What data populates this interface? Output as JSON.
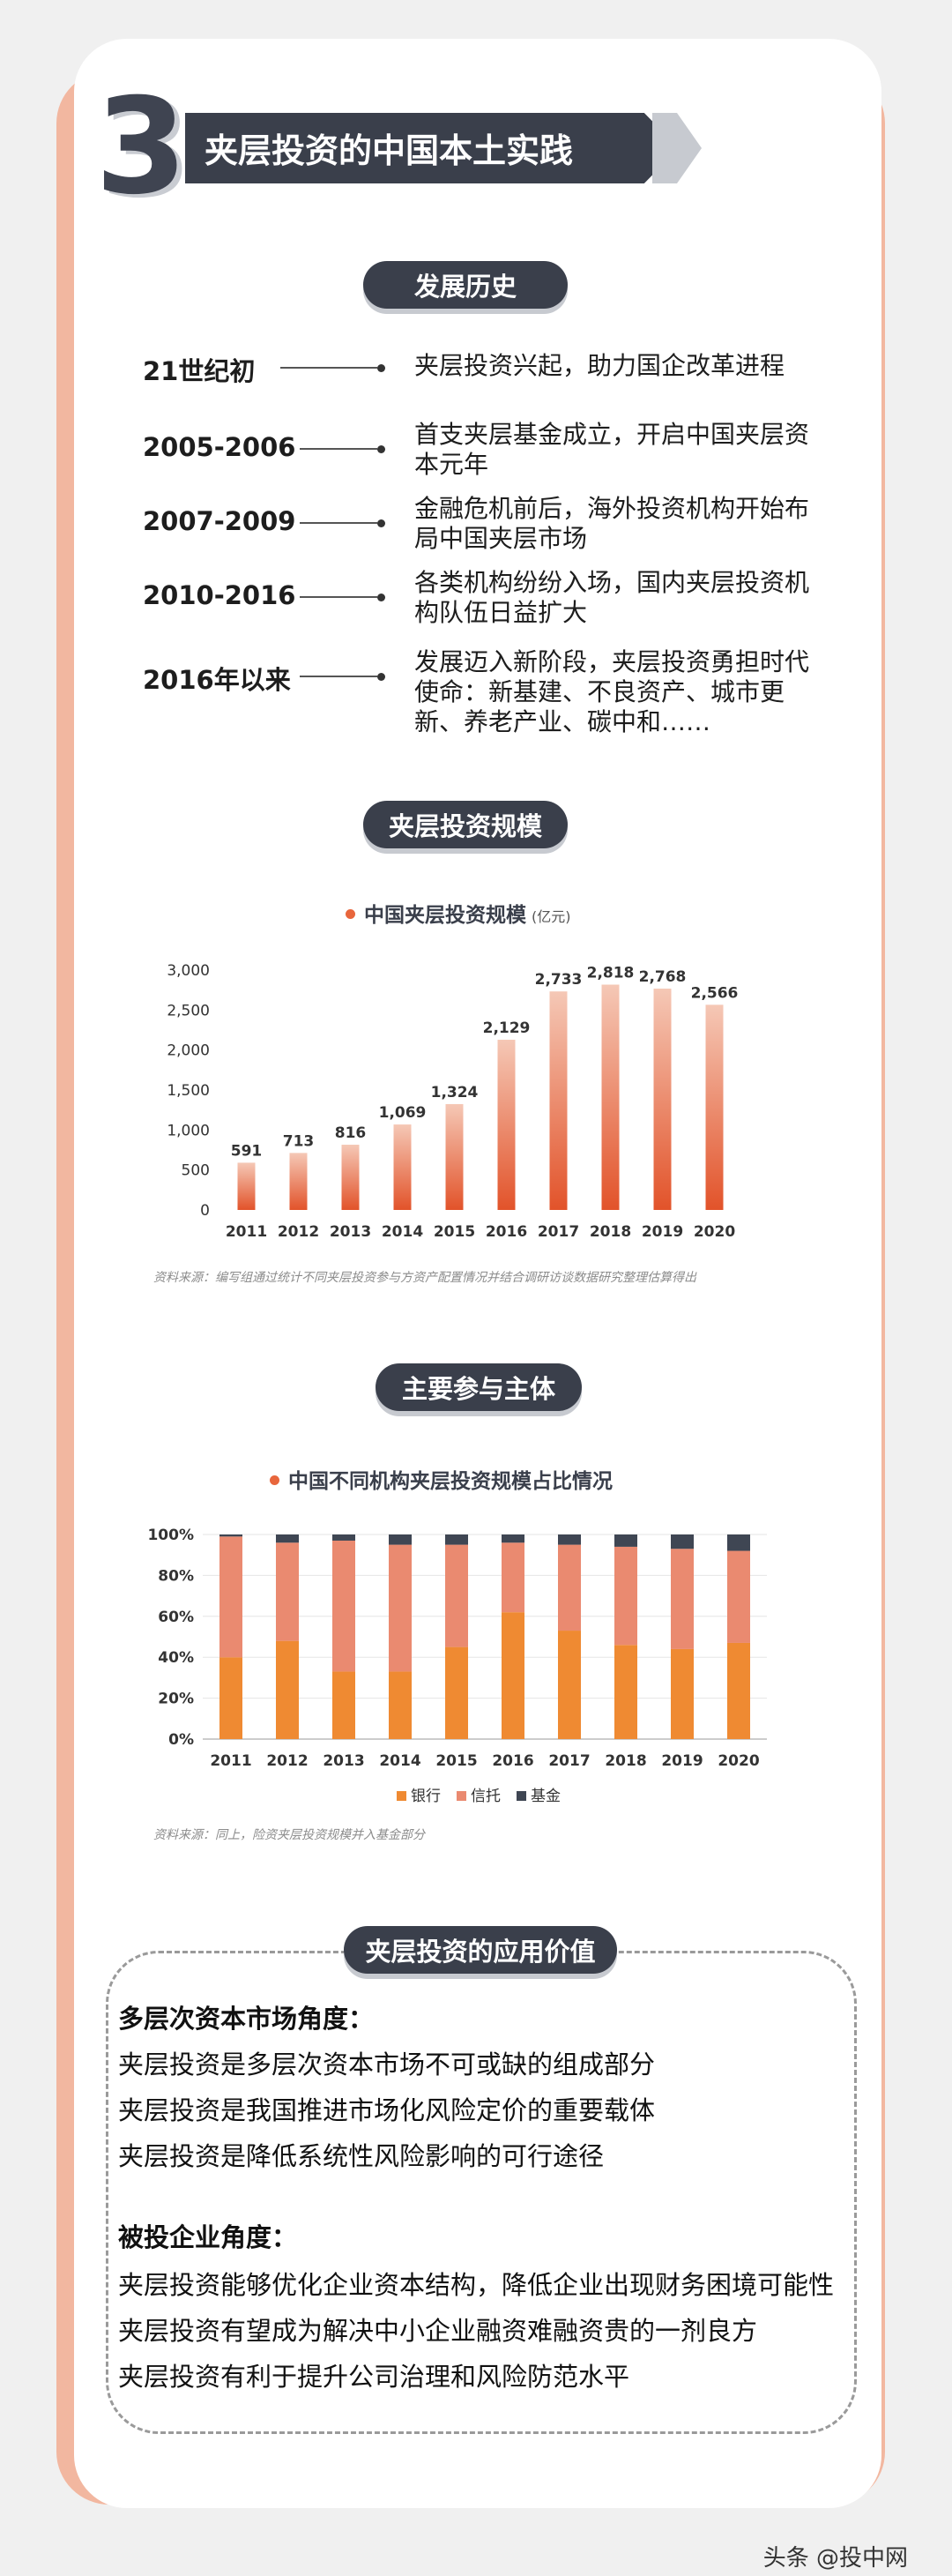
{
  "header": {
    "number": "3",
    "title": "夹层投资的中国本土实践"
  },
  "sections": {
    "history": "发展历史",
    "scale": "夹层投资规模",
    "participants": "主要参与主体",
    "value": "夹层投资的应用价值"
  },
  "timeline": [
    {
      "year": "21世纪初",
      "desc": "夹层投资兴起，助力国企改革进程"
    },
    {
      "year": "2005-2006",
      "desc": "首支夹层基金成立，开启中国夹层资本元年"
    },
    {
      "year": "2007-2009",
      "desc": "金融危机前后，海外投资机构开始布局中国夹层市场"
    },
    {
      "year": "2010-2016",
      "desc": "各类机构纷纷入场，国内夹层投资机构队伍日益扩大"
    },
    {
      "year": "2016年以来",
      "desc": "发展迈入新阶段，夹层投资勇担时代使命：新基建、不良资产、城市更新、养老产业、碳中和……"
    }
  ],
  "chart_data": [
    {
      "type": "bar",
      "title": "中国夹层投资规模",
      "unit": "(亿元)",
      "categories": [
        "2011",
        "2012",
        "2013",
        "2014",
        "2015",
        "2016",
        "2017",
        "2018",
        "2019",
        "2020"
      ],
      "values": [
        591,
        713,
        816,
        1069,
        1324,
        2129,
        2733,
        2818,
        2768,
        2566
      ],
      "value_labels": [
        "591",
        "713",
        "816",
        "1,069",
        "1,324",
        "2,129",
        "2,733",
        "2,818",
        "2,768",
        "2,566"
      ],
      "yticks": [
        "0",
        "500",
        "1,000",
        "1,500",
        "2,000",
        "2,500",
        "3,000"
      ],
      "ylim": [
        0,
        3000
      ],
      "source": "资料来源：编写组通过统计不同夹层投资参与方资产配置情况并结合调研访谈数据研究整理估算得出",
      "colors": {
        "top": "#f5c8b6",
        "bottom": "#e2532a"
      }
    },
    {
      "type": "bar",
      "stacked": true,
      "percent": true,
      "title": "中国不同机构夹层投资规模占比情况",
      "categories": [
        "2011",
        "2012",
        "2013",
        "2014",
        "2015",
        "2016",
        "2017",
        "2018",
        "2019",
        "2020"
      ],
      "yticks": [
        "0%",
        "20%",
        "40%",
        "60%",
        "80%",
        "100%"
      ],
      "ylim": [
        0,
        100
      ],
      "series": [
        {
          "name": "银行",
          "color": "#ef8a32",
          "values": [
            40,
            48,
            33,
            33,
            45,
            62,
            53,
            46,
            44,
            47
          ]
        },
        {
          "name": "信托",
          "color": "#ea8a70",
          "values": [
            59,
            48,
            64,
            62,
            50,
            34,
            42,
            48,
            49,
            45
          ]
        },
        {
          "name": "基金",
          "color": "#3f4653",
          "values": [
            1,
            4,
            3,
            5,
            5,
            4,
            5,
            6,
            7,
            8
          ]
        }
      ],
      "legend_position": "bottom",
      "source": "资料来源：同上，险资夹层投资规模并入基金部分"
    }
  ],
  "value_section": {
    "group1_title": "多层次资本市场角度：",
    "group1_items": [
      "夹层投资是多层次资本市场不可或缺的组成部分",
      "夹层投资是我国推进市场化风险定价的重要载体",
      "夹层投资是降低系统性风险影响的可行途径"
    ],
    "group2_title": "被投企业角度：",
    "group2_items": [
      "夹层投资能够优化企业资本结构，降低企业出现财务困境可能性",
      "夹层投资有望成为解决中小企业融资难融资贵的一剂良方",
      "夹层投资有利于提升公司治理和风险防范水平"
    ]
  },
  "watermark": "头条 @投中网"
}
